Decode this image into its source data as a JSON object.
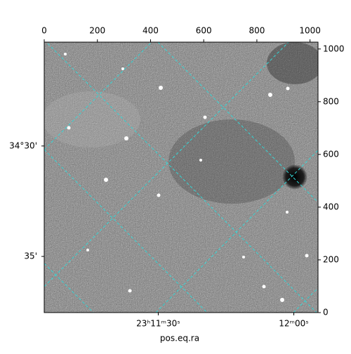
{
  "chart_data": {
    "type": "image",
    "xlabel": "pos.eq.ra",
    "xlim": [
      0,
      1030
    ],
    "ylim": [
      0,
      1026
    ],
    "xticks": [
      0,
      200,
      400,
      600,
      800,
      1000
    ],
    "yticks": [
      0,
      200,
      400,
      600,
      800,
      1000
    ],
    "ra_ticks": [
      {
        "value": 429,
        "label": "23ʰ11ᵐ30ˢ"
      },
      {
        "value": 939,
        "label": "12ᵐ00ˢ"
      }
    ],
    "dec_ticks": [
      {
        "value": 632,
        "label": "34°30'"
      },
      {
        "value": 213,
        "label": "35'"
      }
    ],
    "grid": true,
    "colormap": "gray"
  }
}
